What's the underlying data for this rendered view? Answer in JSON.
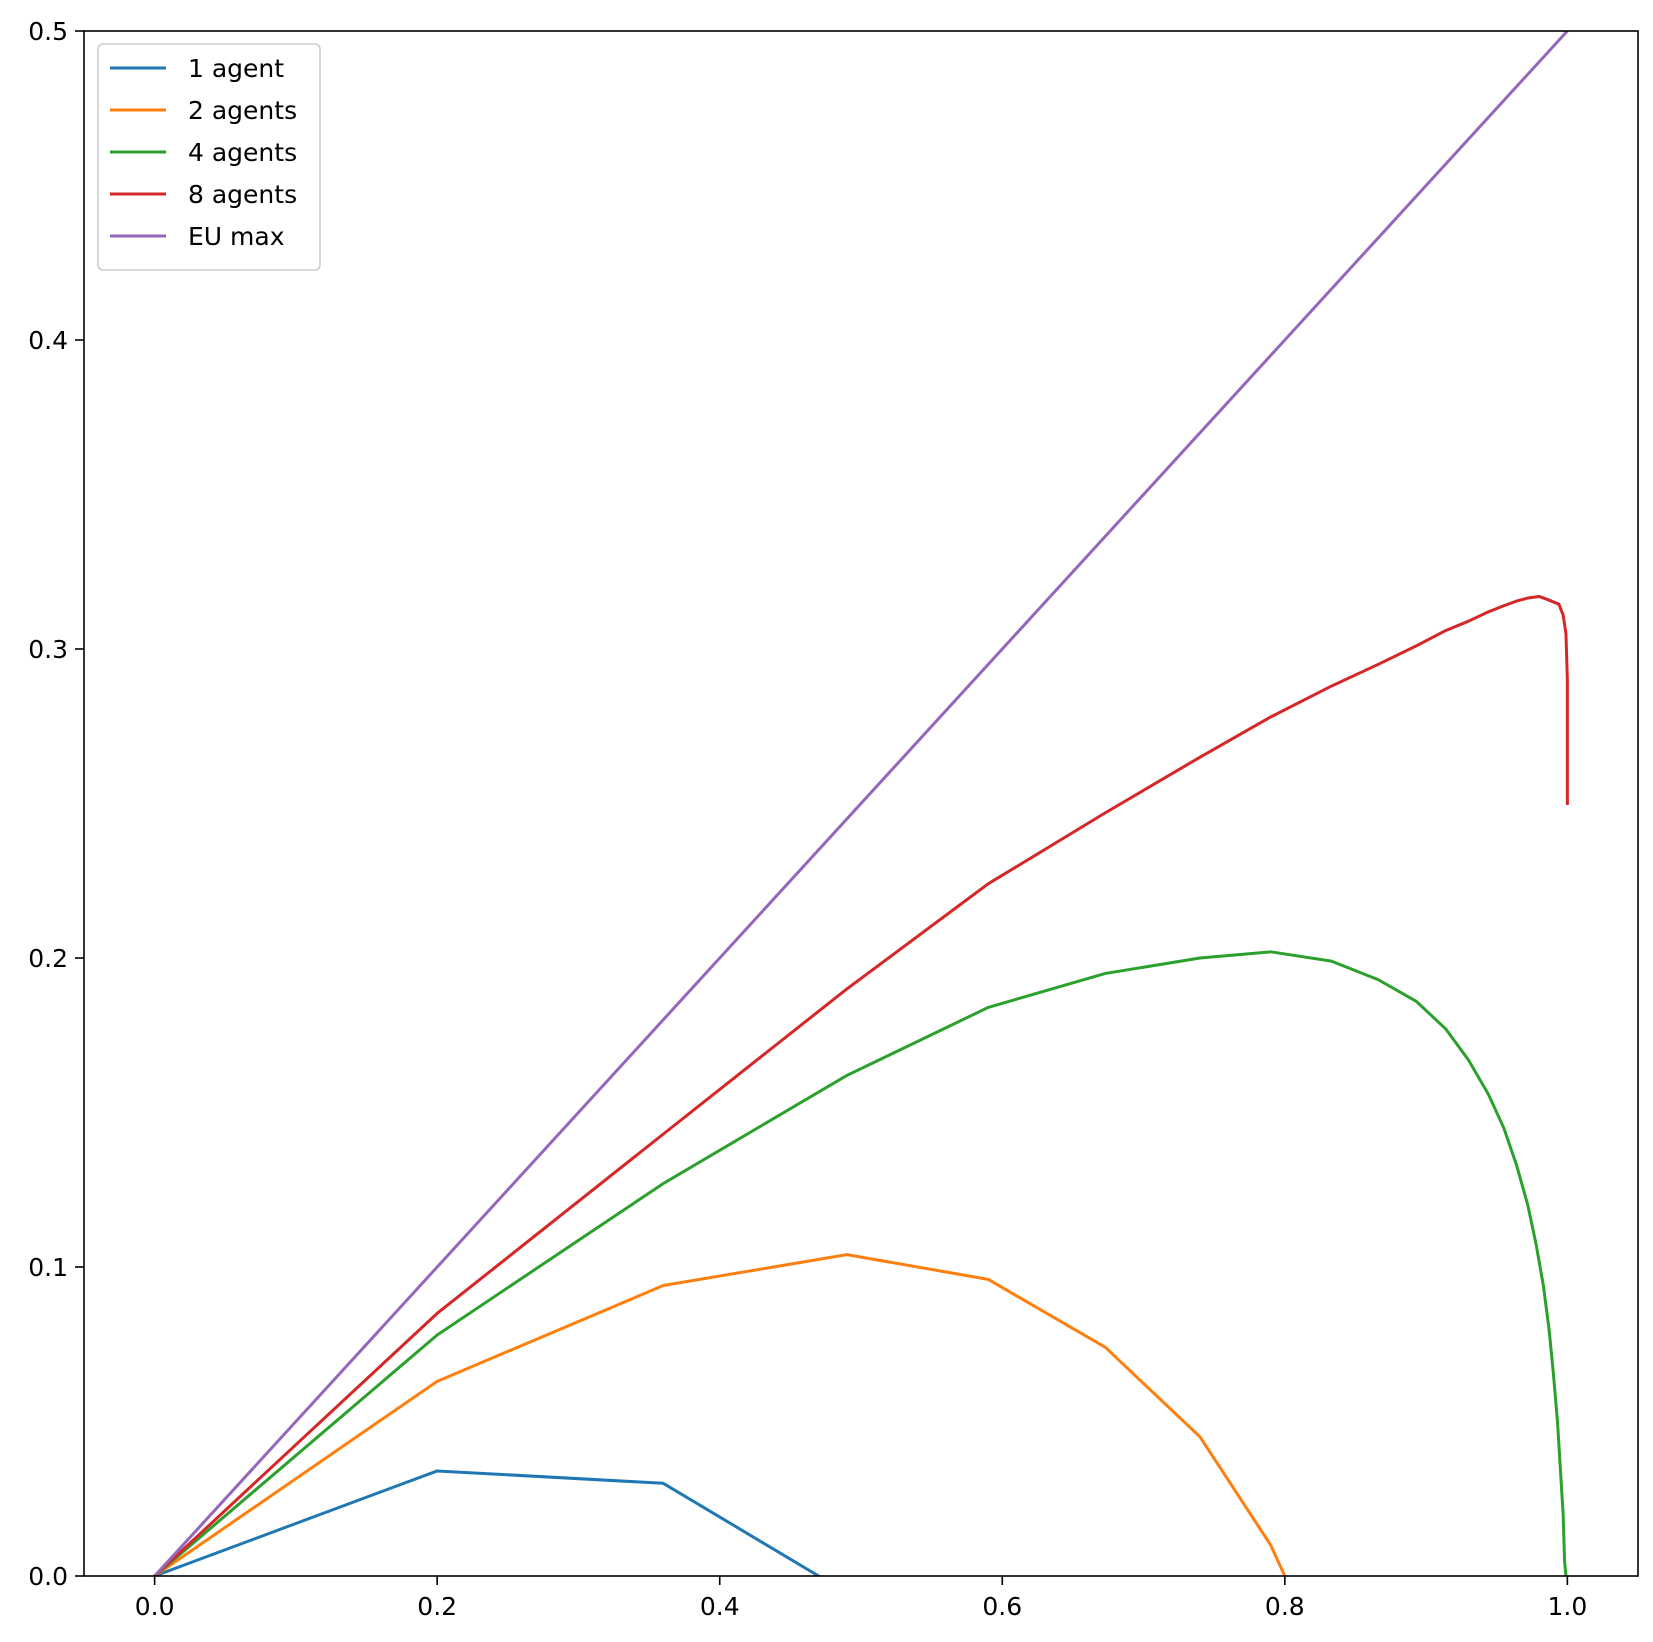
{
  "chart_data": {
    "type": "line",
    "title": "",
    "xlabel": "",
    "ylabel": "",
    "xlim": [
      -0.05,
      1.05
    ],
    "ylim": [
      0.0,
      0.5
    ],
    "x_ticks": [
      0.0,
      0.2,
      0.4,
      0.6,
      0.8,
      1.0
    ],
    "x_tick_labels": [
      "0.0",
      "0.2",
      "0.4",
      "0.6",
      "0.8",
      "1.0"
    ],
    "y_ticks": [
      0.0,
      0.1,
      0.2,
      0.3,
      0.4,
      0.5
    ],
    "y_tick_labels": [
      "0.0",
      "0.1",
      "0.2",
      "0.3",
      "0.4",
      "0.5"
    ],
    "grid": false,
    "legend_position": "upper-left",
    "series": [
      {
        "name": "1 agent",
        "color": "#1f77b4",
        "points": [
          [
            0.0,
            0.0
          ],
          [
            0.2,
            0.034
          ],
          [
            0.36,
            0.03
          ],
          [
            0.47,
            0.0
          ]
        ]
      },
      {
        "name": "2 agents",
        "color": "#ff7f0e",
        "points": [
          [
            0.0,
            0.0
          ],
          [
            0.2,
            0.063
          ],
          [
            0.36,
            0.094
          ],
          [
            0.49,
            0.104
          ],
          [
            0.59,
            0.096
          ],
          [
            0.673,
            0.074
          ],
          [
            0.74,
            0.045
          ],
          [
            0.79,
            0.01
          ],
          [
            0.8,
            0.0
          ]
        ]
      },
      {
        "name": "4 agents",
        "color": "#2ca02c",
        "points": [
          [
            0.0,
            0.0
          ],
          [
            0.2,
            0.078
          ],
          [
            0.36,
            0.127
          ],
          [
            0.49,
            0.162
          ],
          [
            0.59,
            0.184
          ],
          [
            0.673,
            0.195
          ],
          [
            0.74,
            0.2
          ],
          [
            0.79,
            0.202
          ],
          [
            0.833,
            0.199
          ],
          [
            0.866,
            0.193
          ],
          [
            0.893,
            0.186
          ],
          [
            0.914,
            0.177
          ],
          [
            0.93,
            0.167
          ],
          [
            0.944,
            0.156
          ],
          [
            0.955,
            0.145
          ],
          [
            0.964,
            0.133
          ],
          [
            0.972,
            0.12
          ],
          [
            0.978,
            0.107
          ],
          [
            0.983,
            0.094
          ],
          [
            0.987,
            0.08
          ],
          [
            0.99,
            0.066
          ],
          [
            0.993,
            0.05
          ],
          [
            0.995,
            0.035
          ],
          [
            0.997,
            0.02
          ],
          [
            0.998,
            0.005
          ],
          [
            0.999,
            0.0
          ]
        ]
      },
      {
        "name": "8 agents",
        "color": "#d62728",
        "points": [
          [
            0.0,
            0.0
          ],
          [
            0.2,
            0.085
          ],
          [
            0.36,
            0.143
          ],
          [
            0.49,
            0.19
          ],
          [
            0.59,
            0.224
          ],
          [
            0.673,
            0.247
          ],
          [
            0.74,
            0.265
          ],
          [
            0.79,
            0.278
          ],
          [
            0.833,
            0.288
          ],
          [
            0.866,
            0.295
          ],
          [
            0.893,
            0.301
          ],
          [
            0.914,
            0.306
          ],
          [
            0.93,
            0.309
          ],
          [
            0.944,
            0.312
          ],
          [
            0.955,
            0.314
          ],
          [
            0.964,
            0.3155
          ],
          [
            0.972,
            0.3165
          ],
          [
            0.98,
            0.317
          ],
          [
            0.986,
            0.316
          ],
          [
            0.994,
            0.3145
          ],
          [
            0.997,
            0.311
          ],
          [
            0.999,
            0.305
          ],
          [
            1.0,
            0.29
          ],
          [
            1.0,
            0.25
          ]
        ]
      },
      {
        "name": "EU max",
        "color": "#9467bd",
        "points": [
          [
            0.0,
            0.0
          ],
          [
            1.0,
            0.5
          ]
        ]
      }
    ]
  }
}
